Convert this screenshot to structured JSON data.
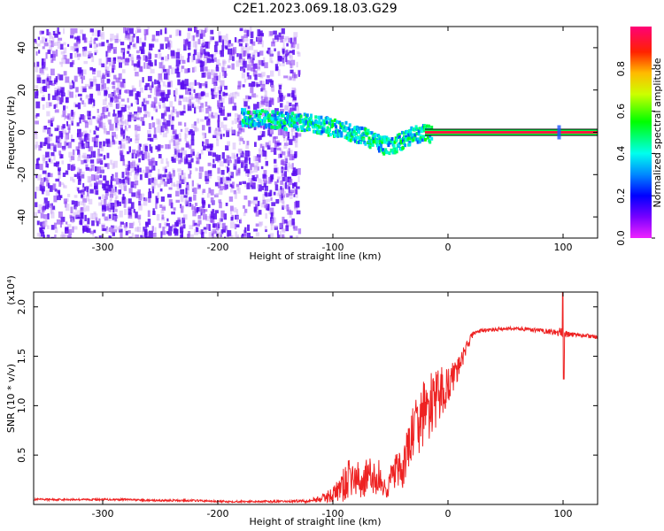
{
  "title": "C2E1.2023.069.18.03.G29",
  "colors": {
    "snr_line": "#ee2222",
    "frame": "#000000"
  },
  "chart_data": [
    {
      "type": "heatmap",
      "name": "spectrogram",
      "xlabel": "Height of straight line (km)",
      "ylabel": "Frequency (Hz)",
      "xlim": [
        -360,
        130
      ],
      "ylim": [
        -50,
        50
      ],
      "xticks": [
        -300,
        -200,
        -100,
        0,
        100
      ],
      "xtick_labels": [
        "-300",
        "-200",
        "-100",
        "0",
        "100"
      ],
      "yticks": [
        -40,
        -20,
        0,
        20,
        40
      ],
      "ytick_labels": [
        "-40",
        "-20",
        "0",
        "20",
        "40"
      ],
      "colorbar": {
        "label": "Normalized spectral amplitude",
        "range": [
          0,
          1
        ],
        "ticks": [
          0.0,
          0.2,
          0.4,
          0.6,
          0.8
        ],
        "tick_labels": [
          "0.0",
          "0.2",
          "0.4",
          "0.6",
          "0.8"
        ]
      },
      "carrier_track": [
        [
          -180,
          8
        ],
        [
          -160,
          7
        ],
        [
          -140,
          6
        ],
        [
          -120,
          5
        ],
        [
          -100,
          3
        ],
        [
          -80,
          0
        ],
        [
          -70,
          -2
        ],
        [
          -60,
          -5
        ],
        [
          -50,
          -6
        ],
        [
          -40,
          -3
        ],
        [
          -30,
          0
        ],
        [
          -20,
          0
        ],
        [
          -10,
          0
        ],
        [
          0,
          1
        ],
        [
          20,
          0
        ],
        [
          60,
          0
        ],
        [
          100,
          0
        ],
        [
          130,
          0
        ]
      ],
      "noise_region_x": [
        -360,
        -130
      ]
    },
    {
      "type": "line",
      "name": "snr",
      "xlabel": "Height of straight line (km)",
      "ylabel": "SNR (10 * v/v)",
      "scale_label": "(x10⁴)",
      "xlim": [
        -360,
        130
      ],
      "ylim": [
        0,
        2.15
      ],
      "xticks": [
        -300,
        -200,
        -100,
        0,
        100
      ],
      "xtick_labels": [
        "-300",
        "-200",
        "-100",
        "0",
        "100"
      ],
      "yticks": [
        0.5,
        1.0,
        1.5,
        2.0
      ],
      "ytick_labels": [
        "0.5",
        "1.0",
        "1.5",
        "2.0"
      ],
      "series": [
        {
          "name": "SNR",
          "x": [
            -360,
            -340,
            -320,
            -300,
            -280,
            -260,
            -240,
            -220,
            -200,
            -180,
            -160,
            -140,
            -120,
            -110,
            -100,
            -95,
            -90,
            -85,
            -80,
            -75,
            -70,
            -65,
            -60,
            -55,
            -50,
            -45,
            -40,
            -35,
            -30,
            -25,
            -20,
            -15,
            -10,
            -5,
            0,
            5,
            10,
            15,
            20,
            25,
            30,
            40,
            50,
            60,
            70,
            80,
            90,
            96,
            100,
            104,
            110,
            120,
            130
          ],
          "values": [
            0.05,
            0.05,
            0.05,
            0.05,
            0.05,
            0.04,
            0.04,
            0.04,
            0.03,
            0.03,
            0.03,
            0.03,
            0.04,
            0.06,
            0.1,
            0.15,
            0.2,
            0.28,
            0.25,
            0.22,
            0.3,
            0.25,
            0.28,
            0.15,
            0.25,
            0.35,
            0.3,
            0.55,
            0.75,
            0.8,
            0.95,
            1.0,
            1.05,
            1.15,
            1.2,
            1.3,
            1.4,
            1.55,
            1.7,
            1.75,
            1.76,
            1.77,
            1.78,
            1.78,
            1.77,
            1.76,
            1.75,
            1.74,
            1.73,
            1.72,
            1.72,
            1.71,
            1.69
          ],
          "noise_amplitude": [
            0.01,
            0.01,
            0.01,
            0.01,
            0.01,
            0.01,
            0.01,
            0.01,
            0.01,
            0.01,
            0.01,
            0.01,
            0.02,
            0.04,
            0.08,
            0.12,
            0.18,
            0.2,
            0.2,
            0.18,
            0.2,
            0.18,
            0.18,
            0.12,
            0.15,
            0.2,
            0.2,
            0.25,
            0.3,
            0.3,
            0.35,
            0.35,
            0.3,
            0.25,
            0.2,
            0.15,
            0.1,
            0.08,
            0.04,
            0.02,
            0.02,
            0.02,
            0.02,
            0.02,
            0.02,
            0.02,
            0.03,
            0.05,
            0.05,
            0.03,
            0.02,
            0.02,
            0.02
          ]
        }
      ]
    }
  ]
}
